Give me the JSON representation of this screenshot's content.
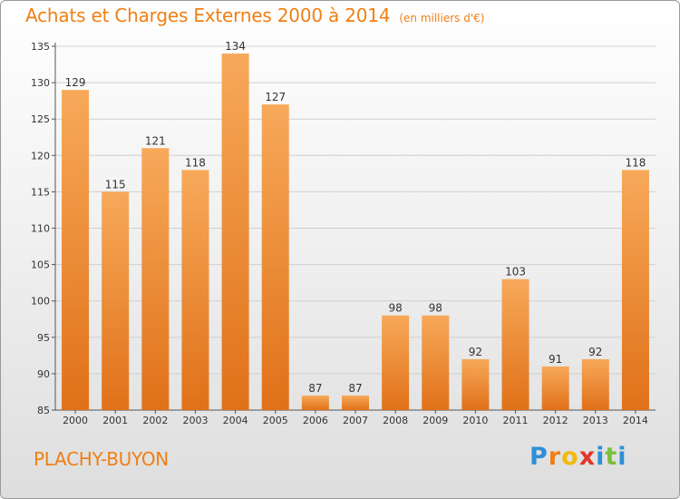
{
  "header": {
    "title": "Achats et Charges Externes 2000 à 2014",
    "unit": "(en milliers d'€)"
  },
  "footer": {
    "place": "PLACHY-BUYON",
    "logo_letters": [
      "P",
      "r",
      "o",
      "x",
      "i",
      "t",
      "i"
    ]
  },
  "colors": {
    "accent": "#f07f14",
    "bar_light": "#f7a95a",
    "bar_dark": "#e07118",
    "logo": [
      "#2e8fd6",
      "#f07f14",
      "#f2b90f",
      "#e2352a",
      "#2e8fd6",
      "#7bbf3a",
      "#2e8fd6"
    ]
  },
  "chart_data": {
    "type": "bar",
    "title": "Achats et Charges Externes 2000 à 2014",
    "subtitle": "(en milliers d'€)",
    "categories": [
      "2000",
      "2001",
      "2002",
      "2003",
      "2004",
      "2005",
      "2006",
      "2007",
      "2008",
      "2009",
      "2010",
      "2011",
      "2012",
      "2013",
      "2014"
    ],
    "values": [
      129,
      115,
      121,
      118,
      134,
      127,
      87,
      87,
      98,
      98,
      92,
      103,
      91,
      92,
      118
    ],
    "ylim": [
      85,
      135
    ],
    "yticks": [
      85,
      90,
      95,
      100,
      105,
      110,
      115,
      120,
      125,
      130,
      135
    ],
    "grid": true
  }
}
